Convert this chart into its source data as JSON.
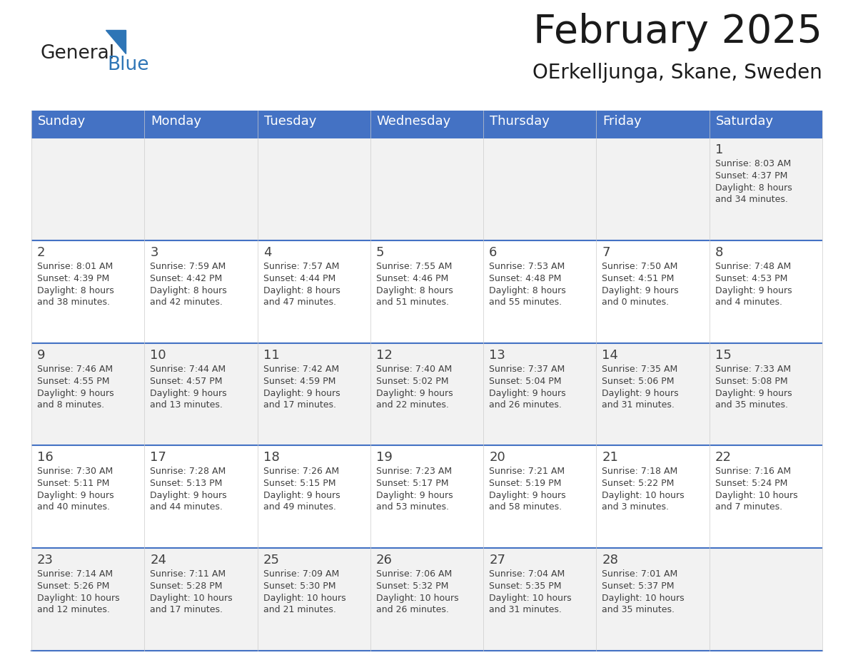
{
  "title": "February 2025",
  "subtitle": "OErkelljunga, Skane, Sweden",
  "days_of_week": [
    "Sunday",
    "Monday",
    "Tuesday",
    "Wednesday",
    "Thursday",
    "Friday",
    "Saturday"
  ],
  "header_bg": "#4472C4",
  "header_text": "#FFFFFF",
  "row_bg_odd": "#F2F2F2",
  "row_bg_even": "#FFFFFF",
  "border_color": "#4472C4",
  "text_color": "#404040",
  "title_color": "#1a1a1a",
  "logo_black": "#222222",
  "logo_blue": "#2E75B6",
  "calendar_data": [
    [
      {
        "day": null,
        "sunrise": null,
        "sunset": null,
        "daylight": null
      },
      {
        "day": null,
        "sunrise": null,
        "sunset": null,
        "daylight": null
      },
      {
        "day": null,
        "sunrise": null,
        "sunset": null,
        "daylight": null
      },
      {
        "day": null,
        "sunrise": null,
        "sunset": null,
        "daylight": null
      },
      {
        "day": null,
        "sunrise": null,
        "sunset": null,
        "daylight": null
      },
      {
        "day": null,
        "sunrise": null,
        "sunset": null,
        "daylight": null
      },
      {
        "day": 1,
        "sunrise": "8:03 AM",
        "sunset": "4:37 PM",
        "daylight": "8 hours and 34 minutes."
      }
    ],
    [
      {
        "day": 2,
        "sunrise": "8:01 AM",
        "sunset": "4:39 PM",
        "daylight": "8 hours and 38 minutes."
      },
      {
        "day": 3,
        "sunrise": "7:59 AM",
        "sunset": "4:42 PM",
        "daylight": "8 hours and 42 minutes."
      },
      {
        "day": 4,
        "sunrise": "7:57 AM",
        "sunset": "4:44 PM",
        "daylight": "8 hours and 47 minutes."
      },
      {
        "day": 5,
        "sunrise": "7:55 AM",
        "sunset": "4:46 PM",
        "daylight": "8 hours and 51 minutes."
      },
      {
        "day": 6,
        "sunrise": "7:53 AM",
        "sunset": "4:48 PM",
        "daylight": "8 hours and 55 minutes."
      },
      {
        "day": 7,
        "sunrise": "7:50 AM",
        "sunset": "4:51 PM",
        "daylight": "9 hours and 0 minutes."
      },
      {
        "day": 8,
        "sunrise": "7:48 AM",
        "sunset": "4:53 PM",
        "daylight": "9 hours and 4 minutes."
      }
    ],
    [
      {
        "day": 9,
        "sunrise": "7:46 AM",
        "sunset": "4:55 PM",
        "daylight": "9 hours and 8 minutes."
      },
      {
        "day": 10,
        "sunrise": "7:44 AM",
        "sunset": "4:57 PM",
        "daylight": "9 hours and 13 minutes."
      },
      {
        "day": 11,
        "sunrise": "7:42 AM",
        "sunset": "4:59 PM",
        "daylight": "9 hours and 17 minutes."
      },
      {
        "day": 12,
        "sunrise": "7:40 AM",
        "sunset": "5:02 PM",
        "daylight": "9 hours and 22 minutes."
      },
      {
        "day": 13,
        "sunrise": "7:37 AM",
        "sunset": "5:04 PM",
        "daylight": "9 hours and 26 minutes."
      },
      {
        "day": 14,
        "sunrise": "7:35 AM",
        "sunset": "5:06 PM",
        "daylight": "9 hours and 31 minutes."
      },
      {
        "day": 15,
        "sunrise": "7:33 AM",
        "sunset": "5:08 PM",
        "daylight": "9 hours and 35 minutes."
      }
    ],
    [
      {
        "day": 16,
        "sunrise": "7:30 AM",
        "sunset": "5:11 PM",
        "daylight": "9 hours and 40 minutes."
      },
      {
        "day": 17,
        "sunrise": "7:28 AM",
        "sunset": "5:13 PM",
        "daylight": "9 hours and 44 minutes."
      },
      {
        "day": 18,
        "sunrise": "7:26 AM",
        "sunset": "5:15 PM",
        "daylight": "9 hours and 49 minutes."
      },
      {
        "day": 19,
        "sunrise": "7:23 AM",
        "sunset": "5:17 PM",
        "daylight": "9 hours and 53 minutes."
      },
      {
        "day": 20,
        "sunrise": "7:21 AM",
        "sunset": "5:19 PM",
        "daylight": "9 hours and 58 minutes."
      },
      {
        "day": 21,
        "sunrise": "7:18 AM",
        "sunset": "5:22 PM",
        "daylight": "10 hours and 3 minutes."
      },
      {
        "day": 22,
        "sunrise": "7:16 AM",
        "sunset": "5:24 PM",
        "daylight": "10 hours and 7 minutes."
      }
    ],
    [
      {
        "day": 23,
        "sunrise": "7:14 AM",
        "sunset": "5:26 PM",
        "daylight": "10 hours and 12 minutes."
      },
      {
        "day": 24,
        "sunrise": "7:11 AM",
        "sunset": "5:28 PM",
        "daylight": "10 hours and 17 minutes."
      },
      {
        "day": 25,
        "sunrise": "7:09 AM",
        "sunset": "5:30 PM",
        "daylight": "10 hours and 21 minutes."
      },
      {
        "day": 26,
        "sunrise": "7:06 AM",
        "sunset": "5:32 PM",
        "daylight": "10 hours and 26 minutes."
      },
      {
        "day": 27,
        "sunrise": "7:04 AM",
        "sunset": "5:35 PM",
        "daylight": "10 hours and 31 minutes."
      },
      {
        "day": 28,
        "sunrise": "7:01 AM",
        "sunset": "5:37 PM",
        "daylight": "10 hours and 35 minutes."
      },
      {
        "day": null,
        "sunrise": null,
        "sunset": null,
        "daylight": null
      }
    ]
  ]
}
